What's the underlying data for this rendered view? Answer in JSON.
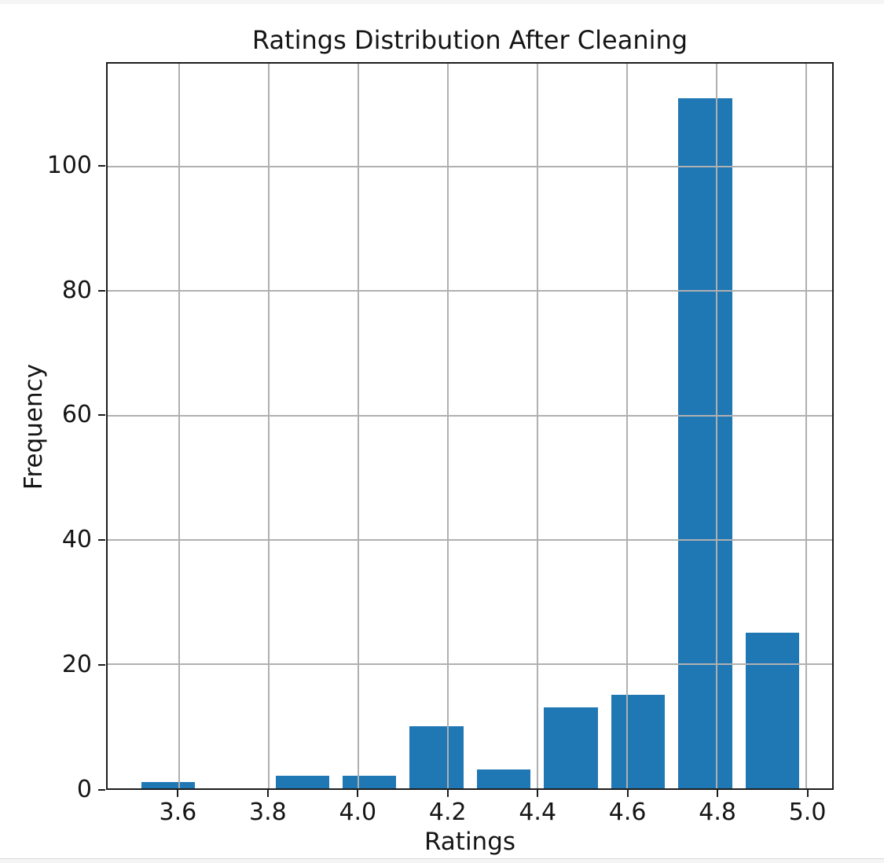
{
  "figure": {
    "title": "Ratings Distribution After Cleaning",
    "xlabel": "Ratings",
    "ylabel": "Frequency"
  },
  "chart_data": {
    "type": "bar",
    "subtype": "histogram",
    "title": "Ratings Distribution After Cleaning",
    "xlabel": "Ratings",
    "ylabel": "Frequency",
    "bin_edges": [
      3.5,
      3.65,
      3.8,
      3.95,
      4.1,
      4.25,
      4.4,
      4.55,
      4.7,
      4.85,
      5.0
    ],
    "bin_centers": [
      3.575,
      3.725,
      3.875,
      4.025,
      4.175,
      4.325,
      4.475,
      4.625,
      4.775,
      4.925
    ],
    "counts": [
      1,
      0,
      2,
      2,
      10,
      3,
      13,
      15,
      111,
      25
    ],
    "bar_width": 0.12,
    "x_ticks": [
      3.6,
      3.8,
      4.0,
      4.2,
      4.4,
      4.6,
      4.8,
      5.0
    ],
    "y_ticks": [
      0,
      20,
      40,
      60,
      80,
      100
    ],
    "xlim": [
      3.4403,
      5.0584
    ],
    "ylim": [
      0,
      116.6
    ],
    "grid": true,
    "grid_on_top": true,
    "legend": null,
    "colors": {
      "bar": "#1f77b4",
      "grid": "#b0b0b0",
      "spine": "#1c1c1c",
      "text": "#151515",
      "figure_bg": "#ffffff",
      "page_bg": "#f5f5f5"
    }
  }
}
